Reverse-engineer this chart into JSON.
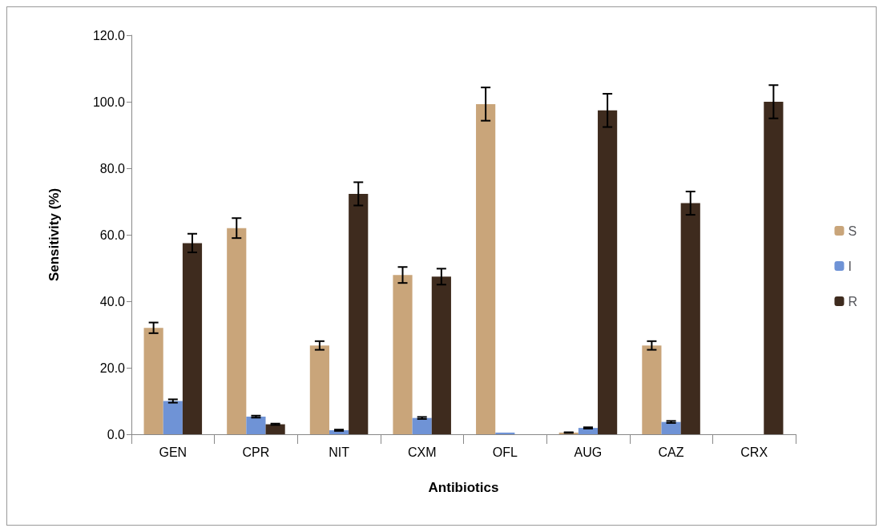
{
  "chart_data": {
    "type": "bar",
    "xlabel": "Antibiotics",
    "ylabel": "Sensitivity (%)",
    "categories": [
      "GEN",
      "CPR",
      "NIT",
      "CXM",
      "OFL",
      "AUG",
      "CAZ",
      "CRX"
    ],
    "series": [
      {
        "name": "S",
        "color": "#c9a57a",
        "values": [
          32,
          62,
          26.7,
          47.9,
          99.3,
          0.5,
          26.7,
          0
        ],
        "errors": [
          1.6,
          3,
          1.3,
          2.4,
          5,
          0.1,
          1.3,
          null
        ]
      },
      {
        "name": "I",
        "color": "#6f93d6",
        "values": [
          10,
          5.3,
          1.2,
          4.9,
          0.5,
          1.9,
          3.7,
          0
        ],
        "errors": [
          0.5,
          0.3,
          0.2,
          0.3,
          null,
          0.2,
          0.3,
          null
        ]
      },
      {
        "name": "R",
        "color": "#3e2b1e",
        "values": [
          57.5,
          3,
          72.3,
          47.4,
          0,
          97.4,
          69.5,
          100
        ],
        "errors": [
          2.8,
          0.2,
          3.5,
          2.4,
          null,
          5,
          3.5,
          5
        ]
      }
    ],
    "ylim": [
      0,
      120
    ],
    "yticks": [
      {
        "value": 0,
        "label": "0.0"
      },
      {
        "value": 20,
        "label": "20.0"
      },
      {
        "value": 40,
        "label": "40.0"
      },
      {
        "value": 60,
        "label": "60.0"
      },
      {
        "value": 80,
        "label": "80.0"
      },
      {
        "value": 100,
        "label": "100.0"
      },
      {
        "value": 120,
        "label": "120.0"
      }
    ],
    "grid": false,
    "legend": "right"
  }
}
